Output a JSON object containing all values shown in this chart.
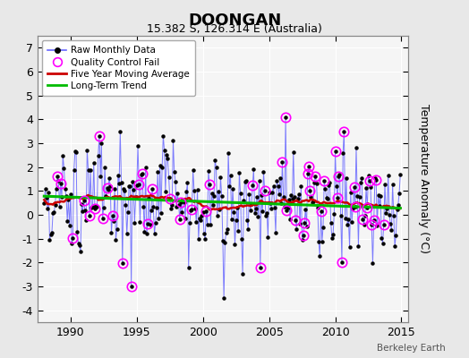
{
  "title": "DOONGAN",
  "subtitle": "15.382 S, 126.314 E (Australia)",
  "ylabel": "Temperature Anomaly (°C)",
  "credit": "Berkeley Earth",
  "ylim": [
    -4.5,
    7.5
  ],
  "yticks": [
    -4,
    -3,
    -2,
    -1,
    0,
    1,
    2,
    3,
    4,
    5,
    6,
    7
  ],
  "xlim": [
    1987.5,
    2015.5
  ],
  "xticks": [
    1990,
    1995,
    2000,
    2005,
    2010,
    2015
  ],
  "line_color": "#6666ff",
  "dot_color": "#000000",
  "moving_avg_color": "#cc0000",
  "trend_color": "#00bb00",
  "qc_color": "#ff00ff",
  "background_color": "#e8e8e8",
  "plot_bg_color": "#f5f5f5",
  "legend_background": "#ffffff"
}
